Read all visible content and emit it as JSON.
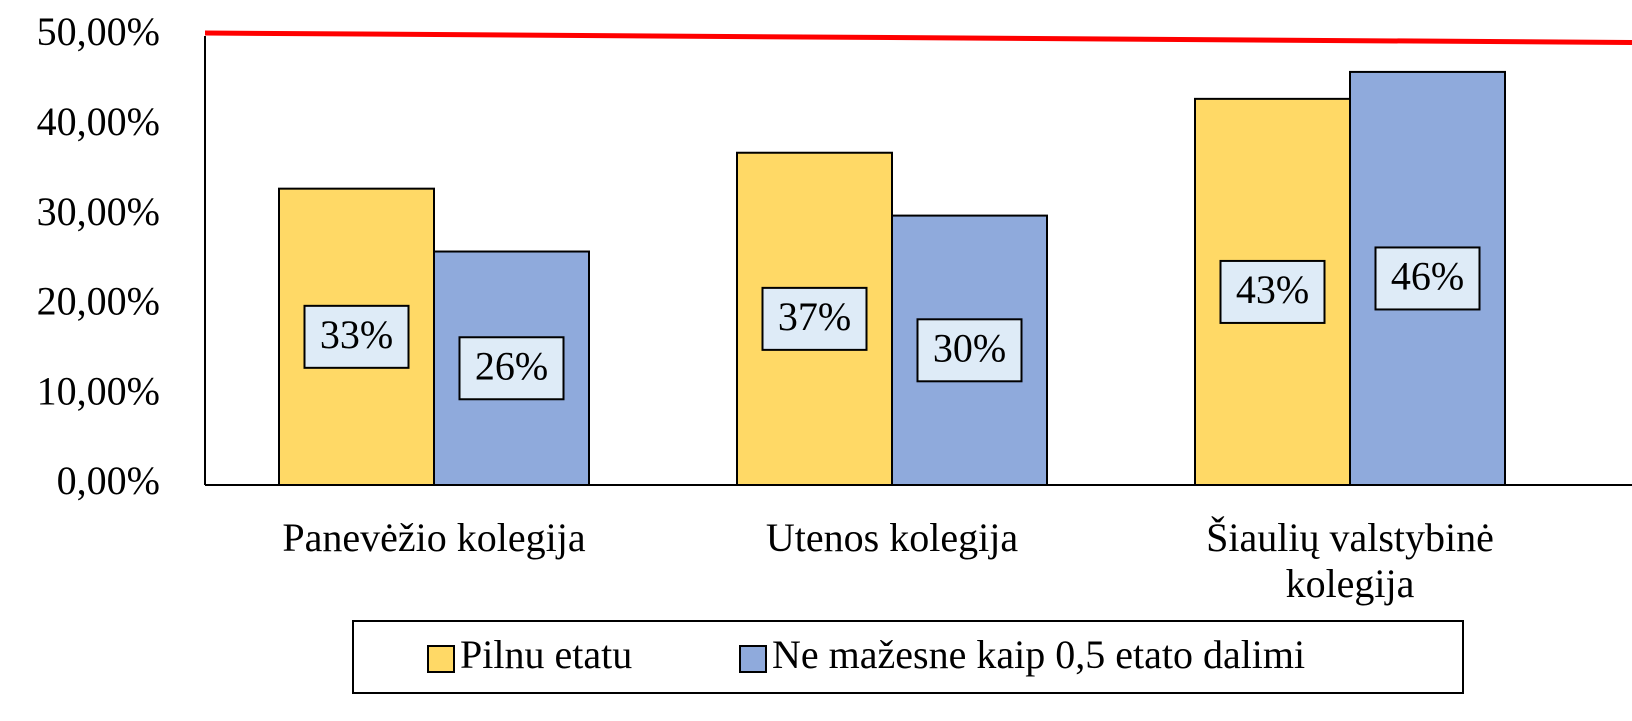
{
  "chart_data": {
    "type": "bar",
    "categories": [
      "Panevėžio kolegija",
      "Utenos kolegija",
      "Šiaulių valstybinė kolegija"
    ],
    "series": [
      {
        "name": "Pilnu etatu",
        "color": "#ffd966",
        "values": [
          33,
          37,
          43
        ],
        "value_labels": [
          "33%",
          "37%",
          "43%"
        ]
      },
      {
        "name": "Ne mažesne kaip 0,5 etato dalimi",
        "color": "#8faadc",
        "values": [
          26,
          30,
          46
        ],
        "value_labels": [
          "26%",
          "30%",
          "46%"
        ]
      }
    ],
    "ylim": [
      0,
      50
    ],
    "yticks": [
      {
        "value": 0,
        "label": "0,00%"
      },
      {
        "value": 10,
        "label": "10,00%"
      },
      {
        "value": 20,
        "label": "20,00%"
      },
      {
        "value": 30,
        "label": "30,00%"
      },
      {
        "value": 40,
        "label": "40,00%"
      },
      {
        "value": 50,
        "label": "50,00%"
      }
    ],
    "grid": false,
    "legend": "bottom"
  }
}
